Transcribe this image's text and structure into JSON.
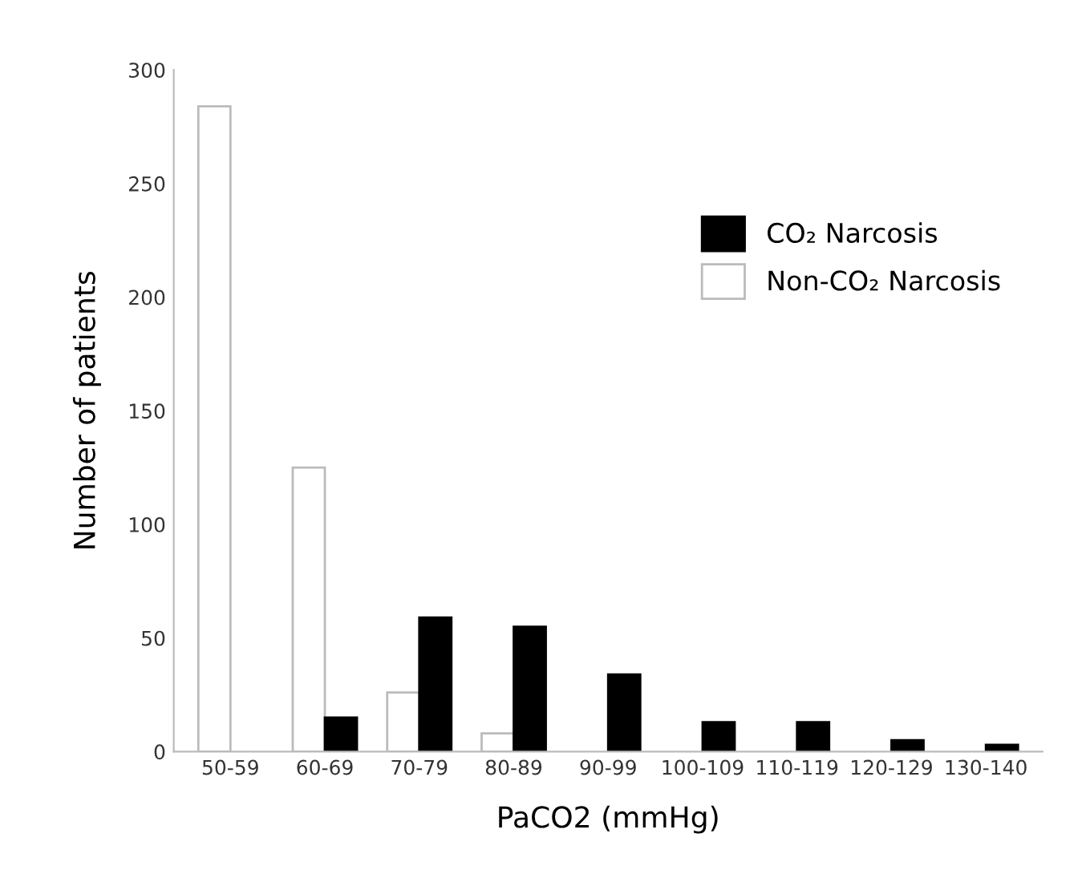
{
  "chart_data": {
    "type": "bar",
    "xlabel": "PaCO2 (mmHg)",
    "ylabel": "Number of patients",
    "categories": [
      "50-59",
      "60-69",
      "70-79",
      "80-89",
      "90-99",
      "100-109",
      "110-119",
      "120-129",
      "130-140"
    ],
    "series": [
      {
        "name": "Non-CO₂ Narcosis",
        "color": "#ffffff",
        "values": [
          284,
          125,
          26,
          8,
          null,
          null,
          null,
          null,
          null
        ]
      },
      {
        "name": "CO₂ Narcosis",
        "color": "#000000",
        "values": [
          null,
          15,
          59,
          55,
          34,
          13,
          13,
          5,
          3
        ]
      }
    ],
    "ylim": [
      0,
      300
    ],
    "yticks": [
      0,
      50,
      100,
      150,
      200,
      250,
      300
    ],
    "grid": false,
    "legend": "top right"
  }
}
